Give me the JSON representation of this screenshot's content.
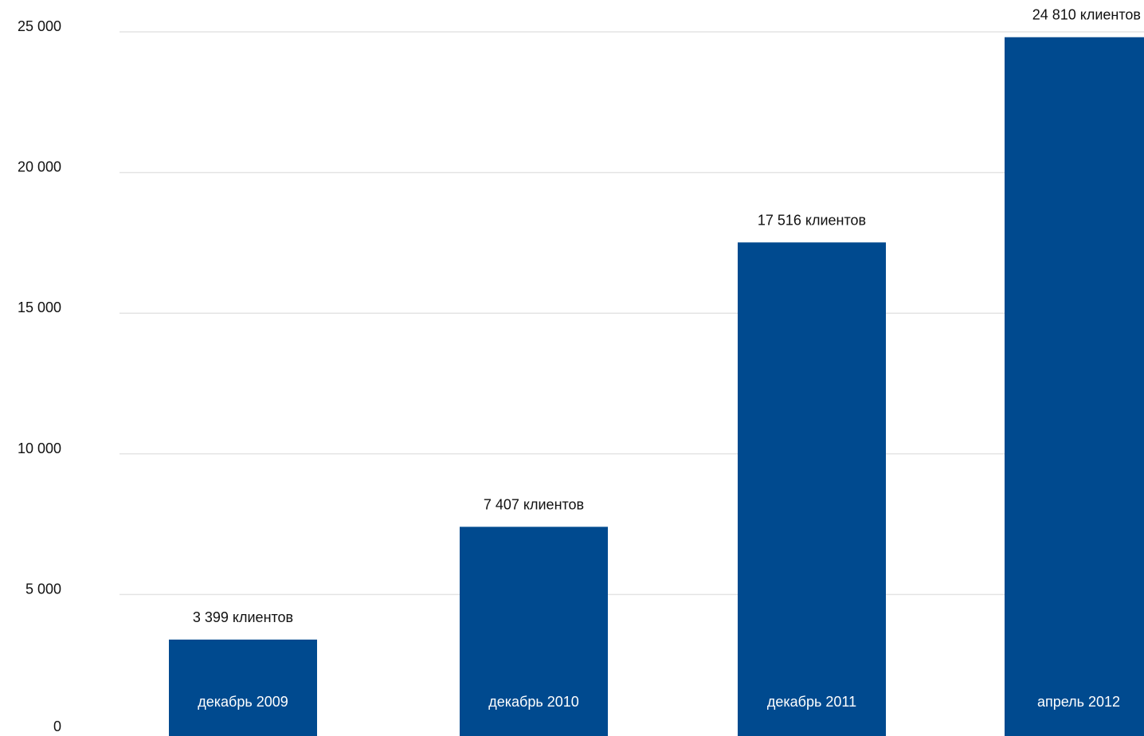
{
  "chart_data": {
    "type": "bar",
    "categories": [
      "декабрь 2009",
      "декабрь 2010",
      "декабрь 2011",
      "апрель 2012"
    ],
    "values": [
      3399,
      7407,
      17516,
      24810
    ],
    "data_labels": [
      "3 399 клиентов",
      "7 407 клиентов",
      "17 516 клиентов",
      "24 810 клиентов"
    ],
    "y_ticks": [
      0,
      5000,
      10000,
      15000,
      20000,
      25000
    ],
    "y_tick_labels": [
      "0",
      "5 000",
      "10 000",
      "15 000",
      "20 000",
      "25 000"
    ],
    "ylim": [
      0,
      25000
    ],
    "grid": true,
    "legend": "none",
    "category_labels_position": "inside-bar-bottom",
    "colors": {
      "bar": "#004a8f",
      "grid": "#e4e4e4",
      "text": "#111111",
      "category_text": "#ffffff"
    }
  }
}
